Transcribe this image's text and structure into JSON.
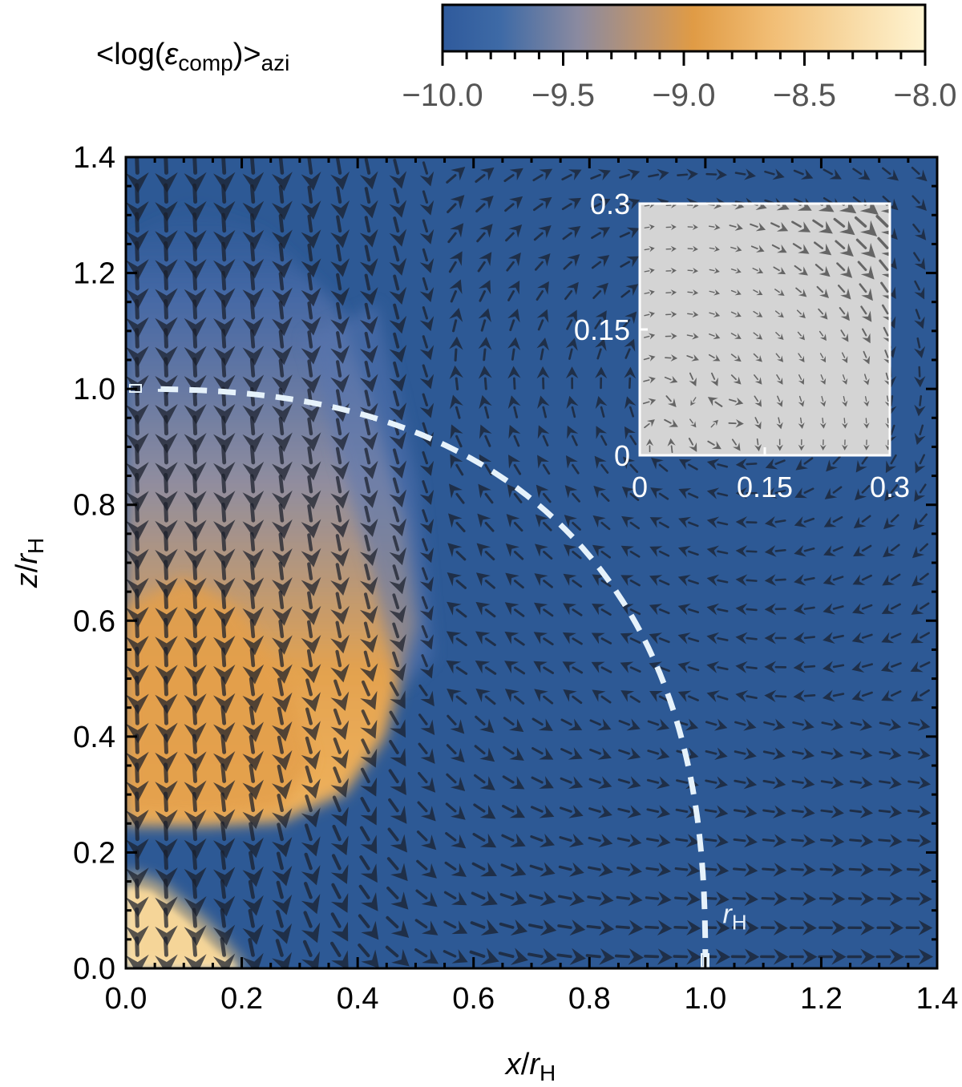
{
  "chart_data": {
    "type": "heatmap",
    "overlay": "vector-field",
    "title": "",
    "xlabel": "x/r_H",
    "ylabel": "z/r_H",
    "xlim": [
      0.0,
      1.4
    ],
    "ylim": [
      0.0,
      1.4
    ],
    "x_ticks": [
      "0.0",
      "0.2",
      "0.4",
      "0.6",
      "0.8",
      "1.0",
      "1.2",
      "1.4"
    ],
    "y_ticks": [
      "0.0",
      "0.2",
      "0.4",
      "0.6",
      "0.8",
      "1.0",
      "1.2",
      "1.4"
    ],
    "colorbar": {
      "label": "<log(ε_comp)>_azi",
      "range": [
        -10.0,
        -8.0
      ],
      "ticks": [
        "-10.0",
        "-9.5",
        "-9.0",
        "-8.5",
        "-8.0"
      ],
      "placement": "top",
      "colors": [
        "#2f5c9e",
        "#d99a48",
        "#fff3cf"
      ]
    },
    "annotations": [
      {
        "text": "r_H",
        "x": 1.03,
        "y": 0.095
      }
    ],
    "hill_radius_curve": {
      "r": 1.0,
      "style": "dashed",
      "color": "#e6f2fb"
    },
    "inset": {
      "xlim": [
        0,
        0.3
      ],
      "ylim": [
        0,
        0.3
      ],
      "x_ticks": [
        "0",
        "0.15",
        "0.3"
      ],
      "y_ticks": [
        "0",
        "0.15",
        "0.3"
      ],
      "background": "#d4d4d4"
    },
    "background_color": "#2d5995"
  }
}
